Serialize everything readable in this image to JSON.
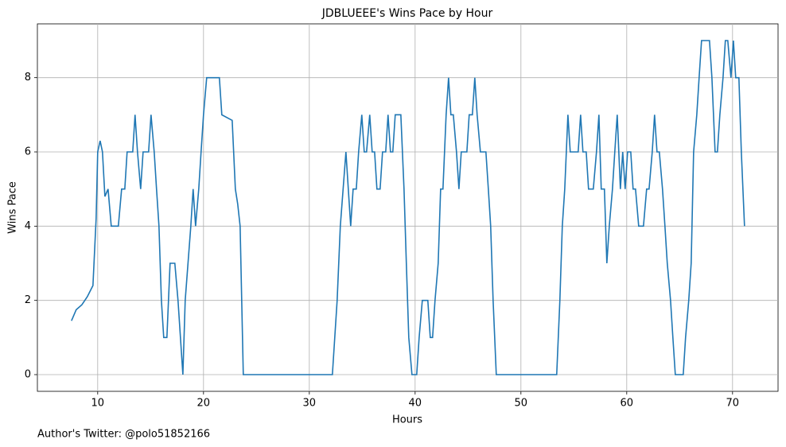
{
  "chart_data": {
    "type": "line",
    "title": "JDBLUEEE's Wins Pace by Hour",
    "xlabel": "Hours",
    "ylabel": "Wins Pace",
    "footnote": "Author's Twitter: @polo51852166",
    "xlim": [
      4.3,
      74.3
    ],
    "ylim": [
      -0.45,
      9.45
    ],
    "xticks": [
      10,
      20,
      30,
      40,
      50,
      60,
      70
    ],
    "yticks": [
      0,
      2,
      4,
      6,
      8
    ],
    "grid": true,
    "x": [
      7.52,
      7.97,
      8.5,
      9.02,
      9.55,
      9.85,
      10.0,
      10.23,
      10.45,
      10.68,
      10.98,
      11.28,
      11.95,
      12.26,
      12.56,
      12.78,
      13.31,
      13.53,
      13.76,
      14.06,
      14.29,
      14.81,
      15.04,
      15.34,
      15.56,
      15.79,
      16.02,
      16.24,
      16.54,
      16.84,
      17.29,
      17.59,
      17.82,
      18.05,
      18.27,
      18.8,
      19.02,
      19.25,
      19.55,
      19.77,
      20.0,
      20.3,
      21.5,
      21.73,
      22.71,
      23.01,
      23.23,
      23.46,
      23.76,
      32.18,
      32.63,
      32.93,
      33.46,
      33.91,
      34.14,
      34.44,
      34.66,
      34.96,
      35.19,
      35.41,
      35.71,
      35.94,
      36.17,
      36.39,
      36.69,
      36.92,
      37.22,
      37.44,
      37.67,
      37.89,
      38.12,
      38.65,
      38.95,
      39.17,
      39.4,
      39.7,
      40.15,
      40.38,
      40.68,
      41.2,
      41.43,
      41.65,
      41.88,
      42.18,
      42.41,
      42.63,
      42.93,
      43.16,
      43.38,
      43.61,
      43.91,
      44.14,
      44.36,
      44.89,
      45.11,
      45.41,
      45.64,
      45.86,
      46.17,
      46.69,
      46.92,
      47.14,
      47.37,
      47.67,
      53.38,
      53.68,
      53.91,
      54.14,
      54.44,
      54.66,
      55.41,
      55.64,
      55.86,
      56.17,
      56.39,
      56.84,
      57.14,
      57.37,
      57.59,
      57.89,
      58.12,
      58.35,
      58.65,
      58.87,
      59.1,
      59.4,
      59.62,
      59.85,
      60.08,
      60.38,
      60.6,
      60.83,
      61.13,
      61.58,
      61.88,
      62.11,
      62.41,
      62.63,
      62.86,
      63.08,
      63.38,
      63.61,
      63.83,
      64.14,
      64.36,
      64.59,
      65.34,
      65.56,
      65.86,
      66.09,
      66.32,
      66.62,
      66.84,
      67.07,
      67.82,
      68.05,
      68.35,
      68.57,
      68.8,
      69.1,
      69.32,
      69.55,
      69.85,
      70.08,
      70.3,
      70.6,
      70.83,
      71.13
    ],
    "series": [
      {
        "name": "Wins Pace",
        "color": "#1f77b4",
        "values": [
          1.45,
          1.75,
          1.88,
          2.1,
          2.4,
          4.2,
          6,
          6.3,
          6,
          4.8,
          5,
          4,
          4,
          5,
          5,
          6,
          6,
          7,
          6,
          5,
          6,
          6,
          7,
          6,
          5,
          4,
          2,
          1,
          1,
          3,
          3,
          2,
          1,
          0,
          2,
          4,
          5,
          4,
          5,
          6,
          7,
          8,
          8,
          7,
          6.85,
          5,
          4.6,
          4,
          0,
          0,
          2,
          4,
          6,
          4,
          5,
          5,
          6,
          7,
          6,
          6,
          7,
          6,
          6,
          5,
          5,
          6,
          6,
          7,
          6,
          6,
          7,
          7,
          5,
          3,
          1,
          0,
          0,
          1,
          2,
          2,
          1,
          1,
          2,
          3,
          5,
          5,
          7,
          8,
          7,
          7,
          6,
          5,
          6,
          6,
          7,
          7,
          8,
          7,
          6,
          6,
          5,
          4,
          2,
          0,
          0,
          2,
          4,
          5,
          7,
          6,
          6,
          7,
          6,
          6,
          5,
          5,
          6,
          7,
          5,
          5,
          3,
          4,
          5,
          6,
          7,
          5,
          6,
          5,
          6,
          6,
          5,
          5,
          4,
          4,
          5,
          5,
          6,
          7,
          6,
          6,
          5,
          4,
          3,
          2,
          1,
          0,
          0,
          1,
          2,
          3,
          6,
          7,
          8,
          9,
          9,
          8,
          6,
          6,
          7,
          8,
          9,
          9,
          8,
          9,
          8,
          8,
          6,
          4
        ]
      }
    ]
  }
}
